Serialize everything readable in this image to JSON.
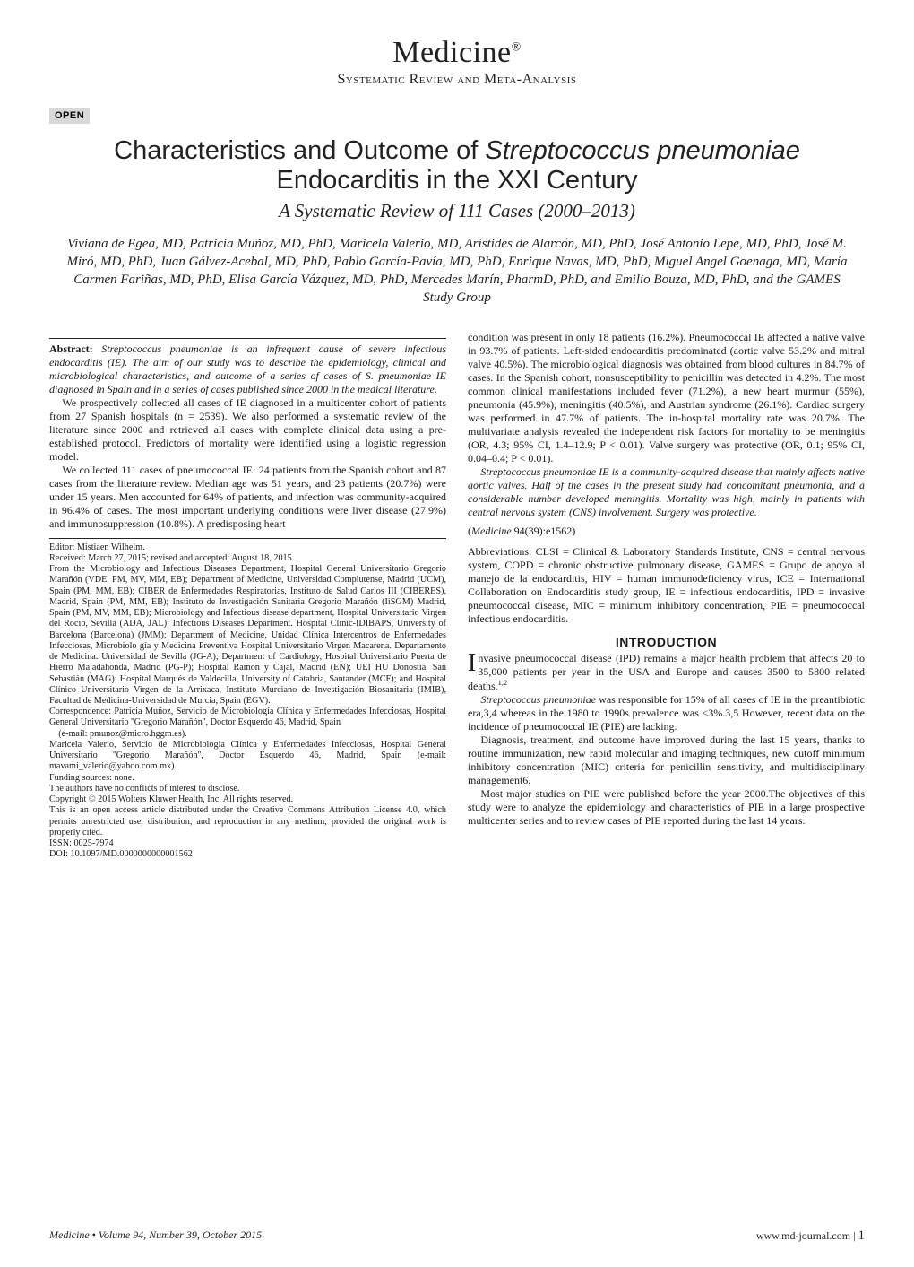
{
  "header": {
    "journal_name": "Medicine",
    "journal_reg": "®",
    "section_type": "Systematic Review and Meta-Analysis"
  },
  "open_badge": "OPEN",
  "title_line1_pre": "Characteristics and Outcome of ",
  "title_line1_italic": "Streptococcus pneumoniae",
  "title_line2": "Endocarditis in the XXI Century",
  "subtitle": "A Systematic Review of 111 Cases (2000–2013)",
  "authors": "Viviana de Egea, MD, Patricia Muñoz, MD, PhD, Maricela Valerio, MD, Arístides de Alarcón, MD, PhD, José Antonio Lepe, MD, PhD, José M. Miró, MD, PhD, Juan Gálvez-Acebal, MD, PhD, Pablo García-Pavía, MD, PhD, Enrique Navas, MD, PhD, Miguel Angel Goenaga, MD, María Carmen Fariñas, MD, PhD, Elisa García Vázquez, MD, PhD, Mercedes Marín, PharmD, PhD, and Emilio Bouza, MD, PhD, and the GAMES Study Group",
  "abstract": {
    "label": "Abstract:",
    "p1": " Streptococcus pneumoniae is an infrequent cause of severe infectious endocarditis (IE). The aim of our study was to describe the epidemiology, clinical and microbiological characteristics, and outcome of a series of cases of S. pneumoniae IE diagnosed in Spain and in a series of cases published since 2000 in the medical literature.",
    "p2": "We prospectively collected all cases of IE diagnosed in a multicenter cohort of patients from 27 Spanish hospitals (n = 2539). We also performed a systematic review of the literature since 2000 and retrieved all cases with complete clinical data using a pre-established protocol. Predictors of mortality were identified using a logistic regression model.",
    "p3": "We collected 111 cases of pneumococcal IE: 24 patients from the Spanish cohort and 87 cases from the literature review. Median age was 51 years, and 23 patients (20.7%) were under 15 years. Men accounted for 64% of patients, and infection was community-acquired in 96.4% of cases. The most important underlying conditions were liver disease (27.9%) and immunosuppression (10.8%). A predisposing heart",
    "p4": "condition was present in only 18 patients (16.2%). Pneumococcal IE affected a native valve in 93.7% of patients. Left-sided endocarditis predominated (aortic valve 53.2% and mitral valve 40.5%). The microbiological diagnosis was obtained from blood cultures in 84.7% of cases. In the Spanish cohort, nonsusceptibility to penicillin was detected in 4.2%. The most common clinical manifestations included fever (71.2%), a new heart murmur (55%), pneumonia (45.9%), meningitis (40.5%), and Austrian syndrome (26.1%). Cardiac surgery was performed in 47.7% of patients. The in-hospital mortality rate was 20.7%. The multivariate analysis revealed the independent risk factors for mortality to be meningitis (OR, 4.3; 95% CI, 1.4–12.9; P < 0.01). Valve surgery was protective (OR, 0.1; 95% CI, 0.04–0.4; P < 0.01).",
    "p5": "Streptococcus pneumoniae IE is a community-acquired disease that mainly affects native aortic valves. Half of the cases in the present study had concomitant pneumonia, and a considerable number developed meningitis. Mortality was high, mainly in patients with central nervous system (CNS) involvement. Surgery was protective."
  },
  "citation": "(Medicine 94(39):e1562)",
  "abbreviations": "Abbreviations: CLSI = Clinical & Laboratory Standards Institute, CNS = central nervous system, COPD = chronic obstructive pulmonary disease, GAMES = Grupo de apoyo al manejo de la endocarditis, HIV = human immunodeficiency virus, ICE = International Collaboration on Endocarditis study group, IE = infectious endocarditis, IPD = invasive pneumococcal disease, MIC = minimum inhibitory concentration, PIE = pneumococcal infectious endocarditis.",
  "introduction": {
    "heading": "INTRODUCTION",
    "p1": "Invasive pneumococcal disease (IPD) remains a major health problem that affects 20 to 35,000 patients per year in the USA and Europe and causes 3500 to 5800 related deaths.",
    "p2_pre": "Streptococcus pneumoniae",
    "p2_post": " was responsible for 15% of all cases of IE in the preantibiotic era,3,4 whereas in the 1980 to 1990s prevalence was <3%.3,5 However, recent data on the incidence of pneumococcal IE (PIE) are lacking.",
    "p3": "Diagnosis, treatment, and outcome have improved during the last 15 years, thanks to routine immunization, new rapid molecular and imaging techniques, new cutoff minimum inhibitory concentration (MIC) criteria for penicillin sensitivity, and multidisciplinary management6.",
    "p4": "Most major studies on PIE were published before the year 2000.The objectives of this study were to analyze the epidemiology and characteristics of PIE in a large prospective multicenter series and to review cases of PIE reported during the last 14 years."
  },
  "footnotes": {
    "editor": "Editor: Mistiaen Wilhelm.",
    "received": "Received: March 27, 2015; revised and accepted: August 18, 2015.",
    "affiliations": "From the Microbiology and Infectious Diseases Department, Hospital General Universitario Gregorio Marañón (VDE, PM, MV, MM, EB); Department of Medicine, Universidad Complutense, Madrid (UCM), Spain (PM, MM, EB); CIBER de Enfermedades Respiratorias, Instituto de Salud Carlos III (CIBERES), Madrid, Spain (PM, MM, EB); Instituto de Investigación Sanitaria Gregorio Marañón (IiSGM) Madrid, Spain (PM, MV, MM, EB); Microbiology and Infectious disease department, Hospital Universitario Virgen del Rocio, Sevilla (ADA, JAL); Infectious Diseases Department. Hospital Clinic-IDIBAPS, University of Barcelona (Barcelona) (JMM); Department of Medicine, Unidad Clínica Intercentros de Enfermedades Infecciosas, Microbiolo gía y Medicina Preventiva Hospital Universitario Virgen Macarena. Departamento de Medicina. Universidad de Sevilla (JG-A); Department of Cardiology, Hospital Universitario Puerta de Hierro Majadahonda, Madrid (PG-P); Hospital Ramón y Cajal, Madrid (EN); UEI HU Donostia, San Sebastián (MAG); Hospital Marqués de Valdecilla, University of Catabria, Santander (MCF); and Hospital Clínico Universitario Virgen de la Arrixaca, Instituto Murciano de Investigación Biosanitaria (IMIB), Facultad de Medicina-Universidad de Murcia, Spain (EGV).",
    "corr1": "Correspondence: Patricia Muñoz, Servicio de Microbiología Clínica y Enfermedades Infecciosas, Hospital General Universitario ''Gregorio Marañón'', Doctor Esquerdo 46, Madrid, Spain",
    "email1": "(e-mail: pmunoz@micro.hggm.es).",
    "corr2": "Maricela Valerio, Servicio de Microbiología Clínica y Enfermedades Infecciosas, Hospital General Universitario ''Gregorio Marañón'', Doctor Esquerdo 46, Madrid, Spain (e-mail: mavami_valerio@yahoo.com.mx).",
    "funding": "Funding sources: none.",
    "conflicts": "The authors have no conflicts of interest to disclose.",
    "copyright": "Copyright © 2015 Wolters Kluwer Health, Inc. All rights reserved.",
    "license": "This is an open access article distributed under the Creative Commons Attribution License 4.0, which permits unrestricted use, distribution, and reproduction in any medium, provided the original work is properly cited.",
    "issn": "ISSN: 0025-7974",
    "doi": "DOI: 10.1097/MD.0000000000001562"
  },
  "footer": {
    "left": "Medicine  •  Volume 94, Number 39, October 2015",
    "right_site": "www.md-journal.com",
    "right_sep": " | ",
    "right_page": "1"
  }
}
